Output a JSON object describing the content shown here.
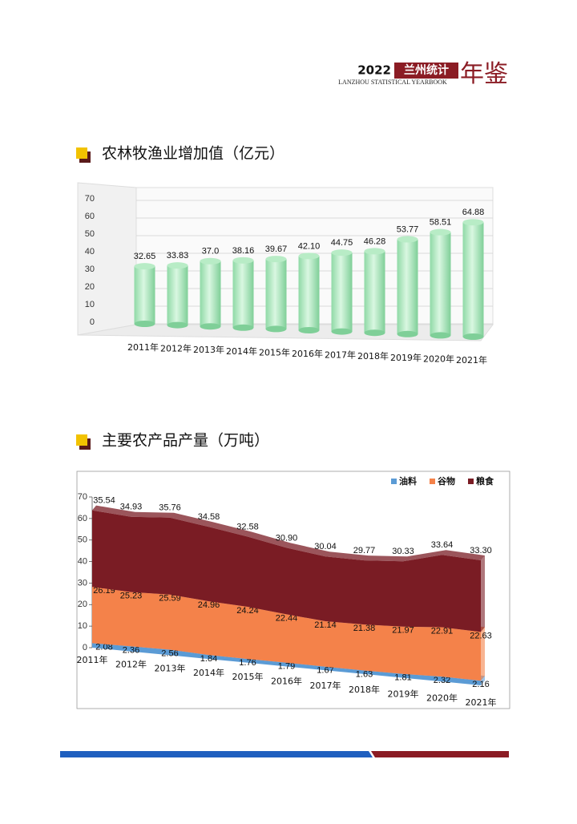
{
  "header": {
    "year": "2022",
    "brand": "兰州统计",
    "yearbook": "年鉴",
    "subtitle": "LANZHOU STATISTICAL YEARBOOK"
  },
  "chart_data": [
    {
      "type": "bar",
      "title": "农林牧渔业增加值（亿元）",
      "categories": [
        "2011年",
        "2012年",
        "2013年",
        "2014年",
        "2015年",
        "2016年",
        "2017年",
        "2018年",
        "2019年",
        "2020年",
        "2021年"
      ],
      "values": [
        32.65,
        33.83,
        37.0,
        38.16,
        39.67,
        42.1,
        44.75,
        46.28,
        53.77,
        58.51,
        64.88
      ],
      "value_labels": [
        "32.65",
        "33.83",
        "37.0",
        "38.16",
        "39.67",
        "42.10",
        "44.75",
        "46.28",
        "53.77",
        "58.51",
        "64.88"
      ],
      "color": "#8fd9a6",
      "ylim": [
        0,
        75
      ],
      "yticks": [
        0,
        10,
        20,
        30,
        40,
        50,
        60,
        70
      ],
      "grid": true
    },
    {
      "type": "stacked_area",
      "title": "主要农产品产量（万吨）",
      "categories": [
        "2011年",
        "2012年",
        "2013年",
        "2014年",
        "2015年",
        "2016年",
        "2017年",
        "2018年",
        "2019年",
        "2020年",
        "2021年"
      ],
      "series": [
        {
          "name": "油料",
          "color": "#5b9bd5",
          "values": [
            2.08,
            2.36,
            2.56,
            1.84,
            1.76,
            1.79,
            1.67,
            1.63,
            1.81,
            2.32,
            2.16
          ],
          "value_labels": [
            "2.08",
            "2.36",
            "2.56",
            "1.84",
            "1.76",
            "1.79",
            "1.67",
            "1.63",
            "1.81",
            "2.32",
            "2.16"
          ]
        },
        {
          "name": "谷物",
          "color": "#f4824a",
          "values": [
            26.19,
            25.23,
            25.59,
            24.96,
            24.24,
            22.44,
            21.14,
            21.38,
            21.97,
            22.91,
            22.63
          ],
          "value_labels": [
            "26.19",
            "25.23",
            "25.59",
            "24.96",
            "24.24",
            "22.44",
            "21.14",
            "21.38",
            "21.97",
            "22.91",
            "22.63"
          ]
        },
        {
          "name": "粮食",
          "color": "#7a1c24",
          "values": [
            35.54,
            34.93,
            35.76,
            34.58,
            32.58,
            30.9,
            30.04,
            29.77,
            30.33,
            33.64,
            33.3
          ],
          "value_labels": [
            "35.54",
            "34.93",
            "35.76",
            "34.58",
            "32.58",
            "30.90",
            "30.04",
            "29.77",
            "30.33",
            "33.64",
            "33.30"
          ]
        }
      ],
      "legend": "top-right",
      "ylim": [
        0,
        70
      ],
      "yticks": [
        0,
        10,
        20,
        30,
        40,
        50,
        60,
        70
      ]
    }
  ]
}
